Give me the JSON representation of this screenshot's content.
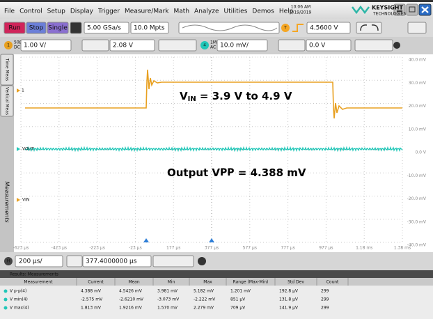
{
  "menu": [
    "File",
    "Control",
    "Setup",
    "Display",
    "Trigger",
    "Measure/Mark",
    "Math",
    "Analyze",
    "Utilities",
    "Demos",
    "Help"
  ],
  "clock": {
    "time": "10:06 AM",
    "date": "9/19/2019"
  },
  "brand": {
    "name": "KEYSIGHT",
    "sub": "TECHNOLOGIES"
  },
  "toolbar": {
    "run": "Run",
    "stop": "Stop",
    "single": "Single",
    "sample_rate": "5.00 GSa/s",
    "memory": "10.0 Mpts",
    "trigger_badge": "T",
    "trigger_level": "4.5600 V"
  },
  "channels": [
    {
      "number": "1",
      "impedance": "50Ω",
      "coupling": "DC",
      "scale": "1.00 V/",
      "offset": "2.08 V"
    },
    {
      "number": "4",
      "impedance": "1MΩ",
      "coupling": "AC",
      "scale": "10.0 mV/",
      "offset": "0.0 V"
    }
  ],
  "side_tabs": [
    "Time Meas",
    "Vertical Meas"
  ],
  "watermark": "Measurements",
  "y_axis_labels": [
    "40.0 mV",
    "30.0 mV",
    "20.0 mV",
    "10.0 mV",
    "0.0 V",
    "-10.0 mV",
    "-20.0 mV",
    "-30.0 mV",
    "-40.0 mV"
  ],
  "x_axis_labels": [
    "-623 µs",
    "-423 µs",
    "-223 µs",
    "-23 µs",
    "177 µs",
    "377 µs",
    "577 µs",
    "777 µs",
    "977 µs",
    "1.18 ms",
    "1.38 ms"
  ],
  "trace_markers": [
    "1",
    "VOUT",
    "VIN"
  ],
  "annotations": [
    {
      "main": "V",
      "sub": "IN",
      "rest": " = 3.9 V to 4.9 V"
    },
    {
      "main": "Output V",
      "sub": "PP",
      "rest": " = 4.388 mV"
    }
  ],
  "timebase": {
    "badge": "H",
    "scale": "200 µs/",
    "position": "377.4000000 µs"
  },
  "results": {
    "title": "Results: Measurements",
    "columns": [
      "Measurement",
      "Current",
      "Mean",
      "Min",
      "Max",
      "Range (Max-Min)",
      "Std Dev",
      "Count"
    ],
    "rows": [
      [
        "V p-p(4)",
        "4.388 mV",
        "4.5426 mV",
        "3.981 mV",
        "5.182 mV",
        "1.201 mV",
        "192.8 µV",
        "299"
      ],
      [
        "V min(4)",
        "-2.575 mV",
        "-2.6210 mV",
        "-3.073 mV",
        "-2.222 mV",
        "851 µV",
        "131.8 µV",
        "299"
      ],
      [
        "V max(4)",
        "1.813 mV",
        "1.9216 mV",
        "1.570 mV",
        "2.279 mV",
        "709 µV",
        "141.9 µV",
        "299"
      ]
    ]
  }
}
